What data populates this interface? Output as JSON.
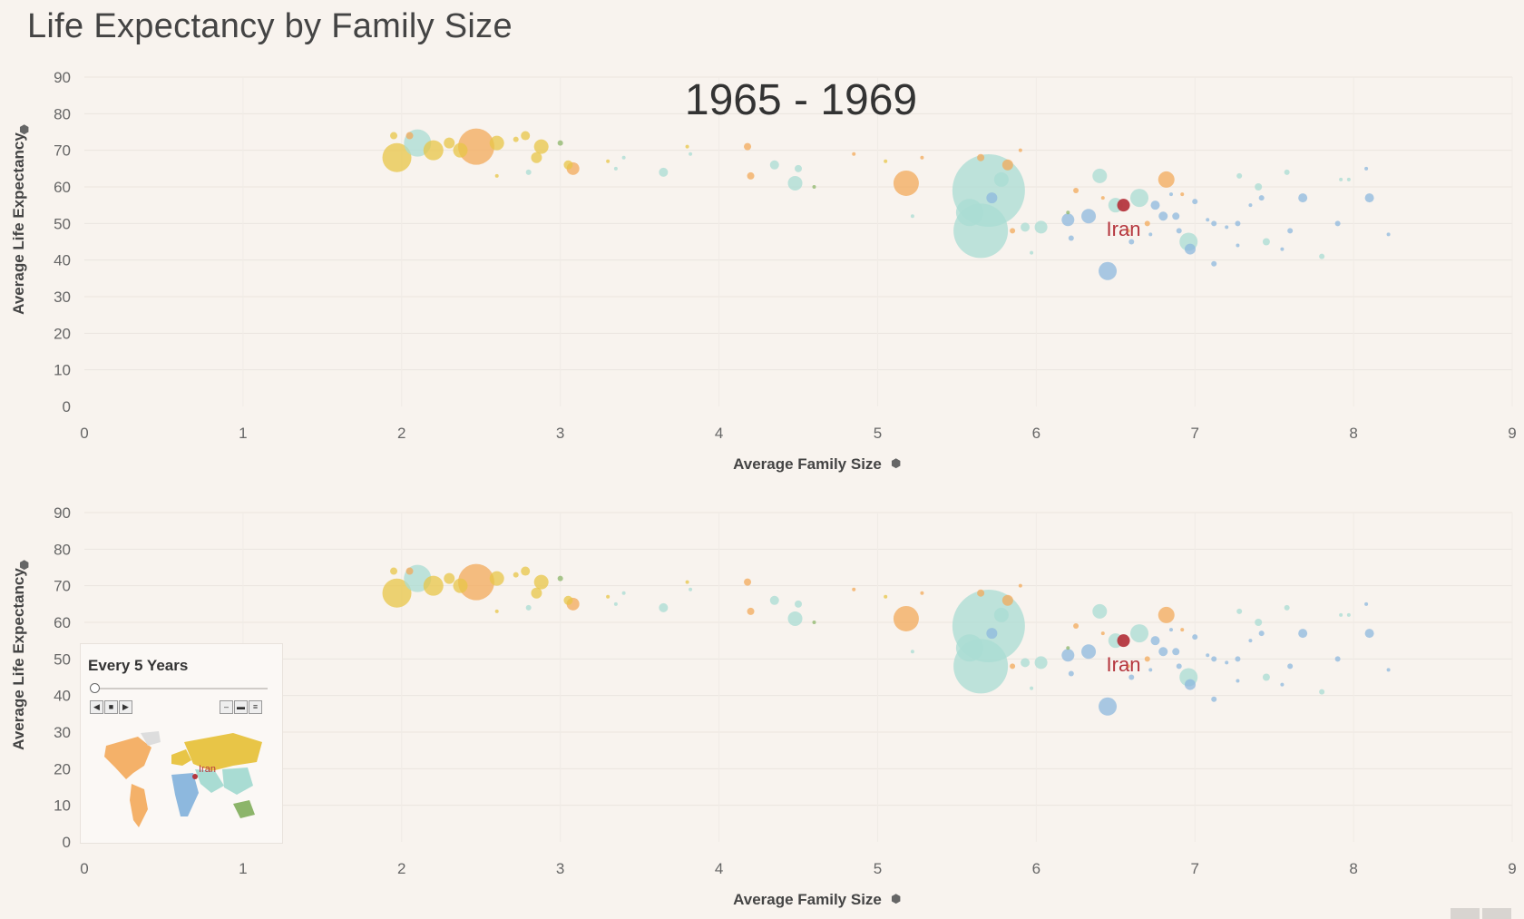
{
  "page": {
    "title": "Life Expectancy by Family Size"
  },
  "period_label": "1965 - 1969",
  "legend": {
    "title": "Every 5 Years",
    "controls": [
      "previous-icon",
      "stop-icon",
      "play-icon",
      "speed-slow-icon",
      "speed-medium-icon",
      "speed-fast-icon"
    ],
    "map_label": "Iran"
  },
  "chart_data": [
    {
      "type": "scatter",
      "title": "",
      "annotation": "1965 - 1969",
      "xlabel": "Average Family Size",
      "ylabel": "Average Life Expectancy",
      "xlim": [
        0,
        9
      ],
      "ylim": [
        0,
        90
      ],
      "xticks": [
        0,
        1,
        2,
        3,
        4,
        5,
        6,
        7,
        8,
        9
      ],
      "yticks": [
        0,
        10,
        20,
        30,
        40,
        50,
        60,
        70,
        80,
        90
      ],
      "size_encoding": "population",
      "highlight": {
        "label": "Iran",
        "x": 6.55,
        "y": 55,
        "color": "#b5363e"
      },
      "region_colors": {
        "europe": "#e8c547",
        "americas": "#f3a95a",
        "asia": "#a9dcd3",
        "africa": "#8db8de",
        "oceania": "#8cb56a"
      },
      "points": [
        {
          "x": 1.95,
          "y": 74,
          "r": 4,
          "region": "europe"
        },
        {
          "x": 1.97,
          "y": 68,
          "r": 16,
          "region": "europe"
        },
        {
          "x": 2.1,
          "y": 72,
          "r": 15,
          "region": "asia"
        },
        {
          "x": 2.05,
          "y": 74,
          "r": 4,
          "region": "americas"
        },
        {
          "x": 2.2,
          "y": 70,
          "r": 11,
          "region": "europe"
        },
        {
          "x": 2.3,
          "y": 72,
          "r": 6,
          "region": "europe"
        },
        {
          "x": 2.37,
          "y": 70,
          "r": 8,
          "region": "europe"
        },
        {
          "x": 2.47,
          "y": 71,
          "r": 20,
          "region": "americas"
        },
        {
          "x": 2.6,
          "y": 72,
          "r": 8,
          "region": "europe"
        },
        {
          "x": 2.6,
          "y": 63,
          "r": 2,
          "region": "europe"
        },
        {
          "x": 2.72,
          "y": 73,
          "r": 3,
          "region": "europe"
        },
        {
          "x": 2.78,
          "y": 74,
          "r": 5,
          "region": "europe"
        },
        {
          "x": 2.8,
          "y": 64,
          "r": 3,
          "region": "asia"
        },
        {
          "x": 2.85,
          "y": 68,
          "r": 6,
          "region": "europe"
        },
        {
          "x": 2.88,
          "y": 71,
          "r": 8,
          "region": "europe"
        },
        {
          "x": 3.0,
          "y": 72,
          "r": 3,
          "region": "oceania"
        },
        {
          "x": 3.05,
          "y": 66,
          "r": 5,
          "region": "europe"
        },
        {
          "x": 3.08,
          "y": 65,
          "r": 7,
          "region": "americas"
        },
        {
          "x": 3.3,
          "y": 67,
          "r": 2,
          "region": "europe"
        },
        {
          "x": 3.35,
          "y": 65,
          "r": 2,
          "region": "asia"
        },
        {
          "x": 3.4,
          "y": 68,
          "r": 2,
          "region": "asia"
        },
        {
          "x": 3.65,
          "y": 64,
          "r": 5,
          "region": "asia"
        },
        {
          "x": 3.8,
          "y": 71,
          "r": 2,
          "region": "europe"
        },
        {
          "x": 3.82,
          "y": 69,
          "r": 2,
          "region": "asia"
        },
        {
          "x": 4.18,
          "y": 71,
          "r": 4,
          "region": "americas"
        },
        {
          "x": 4.2,
          "y": 63,
          "r": 4,
          "region": "americas"
        },
        {
          "x": 4.35,
          "y": 66,
          "r": 5,
          "region": "asia"
        },
        {
          "x": 4.48,
          "y": 61,
          "r": 8,
          "region": "asia"
        },
        {
          "x": 4.5,
          "y": 65,
          "r": 4,
          "region": "asia"
        },
        {
          "x": 4.6,
          "y": 60,
          "r": 2,
          "region": "oceania"
        },
        {
          "x": 4.85,
          "y": 69,
          "r": 2,
          "region": "americas"
        },
        {
          "x": 5.05,
          "y": 67,
          "r": 2,
          "region": "europe"
        },
        {
          "x": 5.18,
          "y": 61,
          "r": 14,
          "region": "americas"
        },
        {
          "x": 5.28,
          "y": 68,
          "r": 2,
          "region": "americas"
        },
        {
          "x": 5.22,
          "y": 52,
          "r": 2,
          "region": "asia"
        },
        {
          "x": 5.58,
          "y": 53,
          "r": 15,
          "region": "asia"
        },
        {
          "x": 5.65,
          "y": 48,
          "r": 30,
          "region": "asia"
        },
        {
          "x": 5.7,
          "y": 59,
          "r": 40,
          "region": "asia"
        },
        {
          "x": 5.72,
          "y": 57,
          "r": 6,
          "region": "africa"
        },
        {
          "x": 5.65,
          "y": 68,
          "r": 4,
          "region": "americas"
        },
        {
          "x": 5.78,
          "y": 62,
          "r": 8,
          "region": "asia"
        },
        {
          "x": 5.82,
          "y": 66,
          "r": 6,
          "region": "americas"
        },
        {
          "x": 5.85,
          "y": 48,
          "r": 3,
          "region": "americas"
        },
        {
          "x": 5.9,
          "y": 70,
          "r": 2,
          "region": "americas"
        },
        {
          "x": 5.93,
          "y": 49,
          "r": 5,
          "region": "asia"
        },
        {
          "x": 6.03,
          "y": 49,
          "r": 7,
          "region": "asia"
        },
        {
          "x": 5.97,
          "y": 42,
          "r": 2,
          "region": "asia"
        },
        {
          "x": 6.2,
          "y": 51,
          "r": 7,
          "region": "africa"
        },
        {
          "x": 6.2,
          "y": 53,
          "r": 2,
          "region": "oceania"
        },
        {
          "x": 6.22,
          "y": 46,
          "r": 3,
          "region": "africa"
        },
        {
          "x": 6.25,
          "y": 59,
          "r": 3,
          "region": "americas"
        },
        {
          "x": 6.33,
          "y": 52,
          "r": 8,
          "region": "africa"
        },
        {
          "x": 6.4,
          "y": 63,
          "r": 8,
          "region": "asia"
        },
        {
          "x": 6.42,
          "y": 57,
          "r": 2,
          "region": "americas"
        },
        {
          "x": 6.45,
          "y": 37,
          "r": 10,
          "region": "africa"
        },
        {
          "x": 6.5,
          "y": 55,
          "r": 8,
          "region": "asia"
        },
        {
          "x": 6.55,
          "y": 55,
          "r": 7,
          "region": "highlight"
        },
        {
          "x": 6.58,
          "y": 48,
          "r": 2,
          "region": "americas"
        },
        {
          "x": 6.6,
          "y": 45,
          "r": 3,
          "region": "africa"
        },
        {
          "x": 6.65,
          "y": 57,
          "r": 10,
          "region": "asia"
        },
        {
          "x": 6.7,
          "y": 50,
          "r": 3,
          "region": "americas"
        },
        {
          "x": 6.72,
          "y": 47,
          "r": 2,
          "region": "africa"
        },
        {
          "x": 6.75,
          "y": 55,
          "r": 5,
          "region": "africa"
        },
        {
          "x": 6.8,
          "y": 52,
          "r": 5,
          "region": "africa"
        },
        {
          "x": 6.82,
          "y": 62,
          "r": 9,
          "region": "americas"
        },
        {
          "x": 6.85,
          "y": 58,
          "r": 2,
          "region": "africa"
        },
        {
          "x": 6.88,
          "y": 52,
          "r": 4,
          "region": "africa"
        },
        {
          "x": 6.9,
          "y": 48,
          "r": 3,
          "region": "africa"
        },
        {
          "x": 6.92,
          "y": 58,
          "r": 2,
          "region": "americas"
        },
        {
          "x": 6.96,
          "y": 45,
          "r": 10,
          "region": "asia"
        },
        {
          "x": 6.97,
          "y": 43,
          "r": 6,
          "region": "africa"
        },
        {
          "x": 7.0,
          "y": 56,
          "r": 3,
          "region": "africa"
        },
        {
          "x": 7.08,
          "y": 51,
          "r": 2,
          "region": "africa"
        },
        {
          "x": 7.12,
          "y": 39,
          "r": 3,
          "region": "africa"
        },
        {
          "x": 7.12,
          "y": 50,
          "r": 3,
          "region": "africa"
        },
        {
          "x": 7.2,
          "y": 49,
          "r": 2,
          "region": "africa"
        },
        {
          "x": 7.27,
          "y": 44,
          "r": 2,
          "region": "africa"
        },
        {
          "x": 7.27,
          "y": 50,
          "r": 3,
          "region": "africa"
        },
        {
          "x": 7.28,
          "y": 63,
          "r": 3,
          "region": "asia"
        },
        {
          "x": 7.35,
          "y": 55,
          "r": 2,
          "region": "africa"
        },
        {
          "x": 7.4,
          "y": 60,
          "r": 4,
          "region": "asia"
        },
        {
          "x": 7.42,
          "y": 57,
          "r": 3,
          "region": "africa"
        },
        {
          "x": 7.45,
          "y": 45,
          "r": 4,
          "region": "asia"
        },
        {
          "x": 7.55,
          "y": 43,
          "r": 2,
          "region": "africa"
        },
        {
          "x": 7.58,
          "y": 64,
          "r": 3,
          "region": "asia"
        },
        {
          "x": 7.6,
          "y": 48,
          "r": 3,
          "region": "africa"
        },
        {
          "x": 7.68,
          "y": 57,
          "r": 5,
          "region": "africa"
        },
        {
          "x": 7.8,
          "y": 41,
          "r": 3,
          "region": "asia"
        },
        {
          "x": 7.9,
          "y": 50,
          "r": 3,
          "region": "africa"
        },
        {
          "x": 7.92,
          "y": 62,
          "r": 2,
          "region": "asia"
        },
        {
          "x": 7.97,
          "y": 62,
          "r": 2,
          "region": "asia"
        },
        {
          "x": 8.1,
          "y": 57,
          "r": 5,
          "region": "africa"
        },
        {
          "x": 8.08,
          "y": 65,
          "r": 2,
          "region": "africa"
        },
        {
          "x": 8.22,
          "y": 47,
          "r": 2,
          "region": "africa"
        }
      ]
    },
    {
      "type": "scatter",
      "title": "",
      "xlabel": "Average Family Size",
      "ylabel": "Average Life Expectancy",
      "xlim": [
        0,
        9
      ],
      "ylim": [
        0,
        90
      ],
      "xticks": [
        0,
        1,
        2,
        3,
        4,
        5,
        6,
        7,
        8,
        9
      ],
      "yticks": [
        0,
        10,
        20,
        30,
        40,
        50,
        60,
        70,
        80,
        90
      ],
      "same_points_as": 0,
      "highlight": {
        "label": "Iran",
        "x": 6.55,
        "y": 55,
        "color": "#b5363e"
      }
    }
  ]
}
